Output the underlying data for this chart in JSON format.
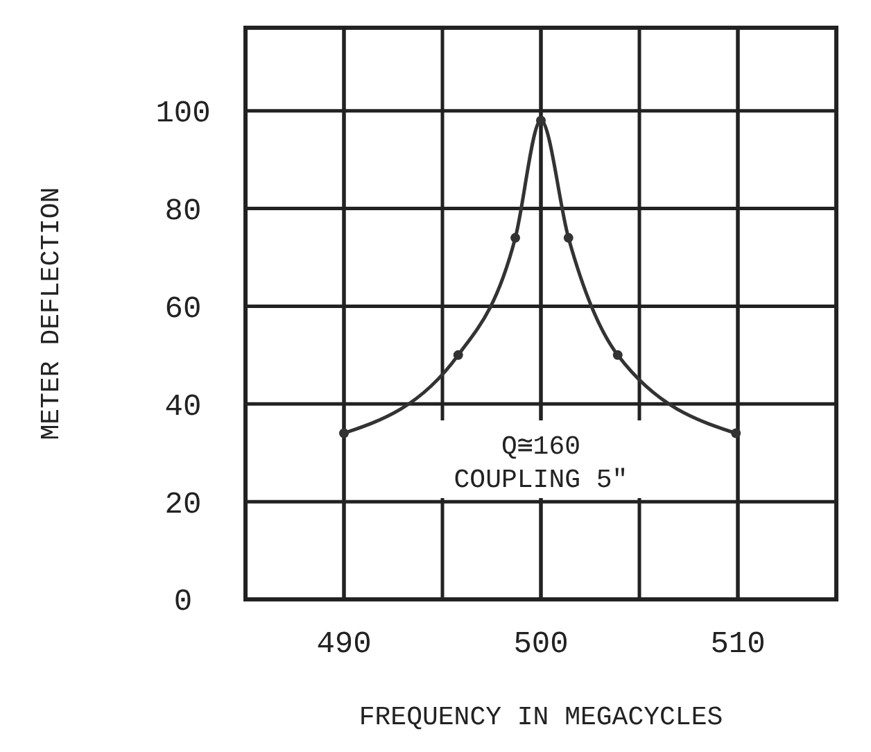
{
  "chart_data": {
    "type": "line",
    "xlabel": "FREQUENCY IN MEGACYCLES",
    "ylabel": "METER DEFLECTION",
    "x": [
      490,
      495.8,
      498.7,
      500,
      501.4,
      503.9,
      509.9
    ],
    "series": [
      {
        "color": "#333333",
        "values": [
          34,
          50,
          74,
          98,
          74,
          50,
          34
        ]
      }
    ],
    "xlim": [
      485,
      515
    ],
    "ylim": [
      0,
      117
    ],
    "xticks": [
      490,
      500,
      510
    ],
    "yticks": [
      0,
      20,
      40,
      60,
      80,
      100
    ],
    "grid": true,
    "marker": "circle",
    "line_style": "solid",
    "annotations": [
      "Q≅160",
      "COUPLING 5\""
    ]
  }
}
